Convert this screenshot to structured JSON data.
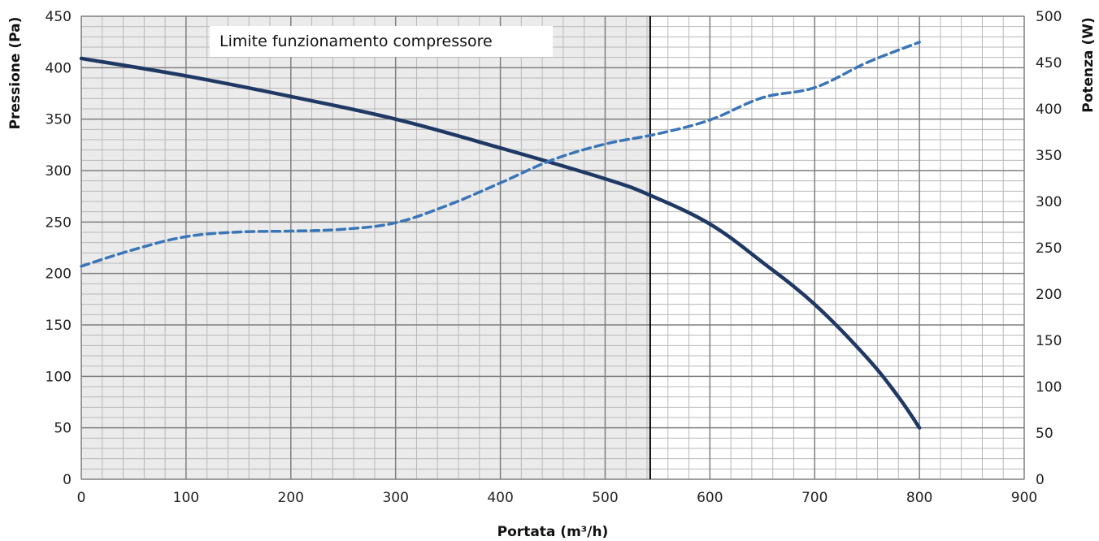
{
  "chart_data": {
    "type": "line",
    "xlabel": "Portata (m³/h)",
    "ylabel_left": "Pressione (Pa)",
    "ylabel_right": "Potenza (W)",
    "xlim": [
      0,
      900
    ],
    "ylim_left": [
      0,
      450
    ],
    "ylim_right": [
      0,
      500
    ],
    "x_ticks": [
      "0",
      "100",
      "200",
      "300",
      "400",
      "500",
      "600",
      "700",
      "800",
      "900"
    ],
    "y_left_ticks": [
      "0",
      "50",
      "100",
      "150",
      "200",
      "250",
      "300",
      "350",
      "400",
      "450"
    ],
    "y_right_ticks": [
      "0",
      "50",
      "100",
      "150",
      "200",
      "250",
      "300",
      "350",
      "400",
      "450",
      "500"
    ],
    "grid": true,
    "annotation": {
      "text": "Limite funzionamento compressore",
      "x_limit": 543,
      "shaded_region": [
        0,
        543
      ]
    },
    "series": [
      {
        "axis": "left",
        "style": "solid",
        "color": "#1f3864",
        "x": [
          0,
          100,
          200,
          300,
          400,
          500,
          543,
          600,
          650,
          700,
          750,
          780,
          800
        ],
        "y": [
          409,
          392,
          372,
          350,
          322,
          292,
          276,
          248,
          211,
          170,
          118,
          80,
          50
        ]
      },
      {
        "axis": "right",
        "style": "dashed",
        "color": "#3a75b8",
        "x": [
          0,
          50,
          100,
          150,
          200,
          250,
          300,
          350,
          400,
          450,
          500,
          550,
          600,
          650,
          700,
          750,
          800
        ],
        "y": [
          230,
          248,
          262,
          267,
          268,
          270,
          277,
          296,
          320,
          345,
          362,
          373,
          388,
          412,
          423,
          450,
          472
        ]
      }
    ]
  },
  "colors": {
    "shade": "#ebebeb",
    "major_grid": "#7f7f7f",
    "minor_grid": "#b8b8b8",
    "limit_line": "#000000"
  }
}
